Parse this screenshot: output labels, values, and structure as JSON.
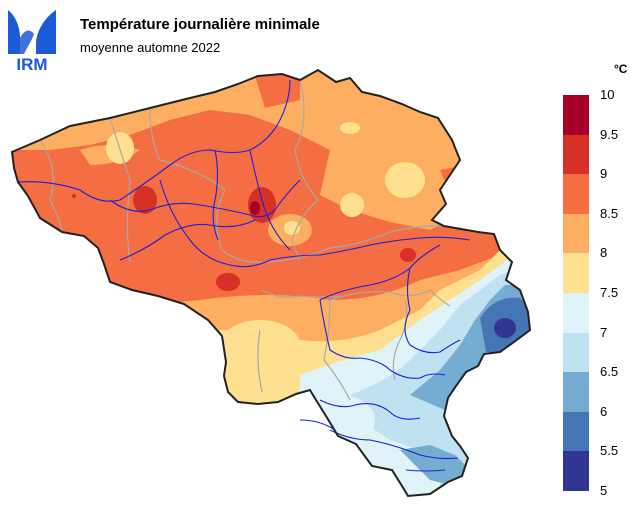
{
  "title": "Température journalière minimale",
  "subtitle": "moyenne automne 2022",
  "logo_text": "IRM",
  "unit": "°C",
  "legend": {
    "ticks": [
      "10",
      "9.5",
      "9",
      "8.5",
      "8",
      "7.5",
      "7",
      "6.5",
      "6",
      "5.5",
      "5"
    ],
    "colors": [
      "#a50026",
      "#d73027",
      "#f46d43",
      "#fdae61",
      "#fee090",
      "#e0f3f8",
      "#c0e1ef",
      "#74add1",
      "#4575b4",
      "#313695"
    ]
  }
}
